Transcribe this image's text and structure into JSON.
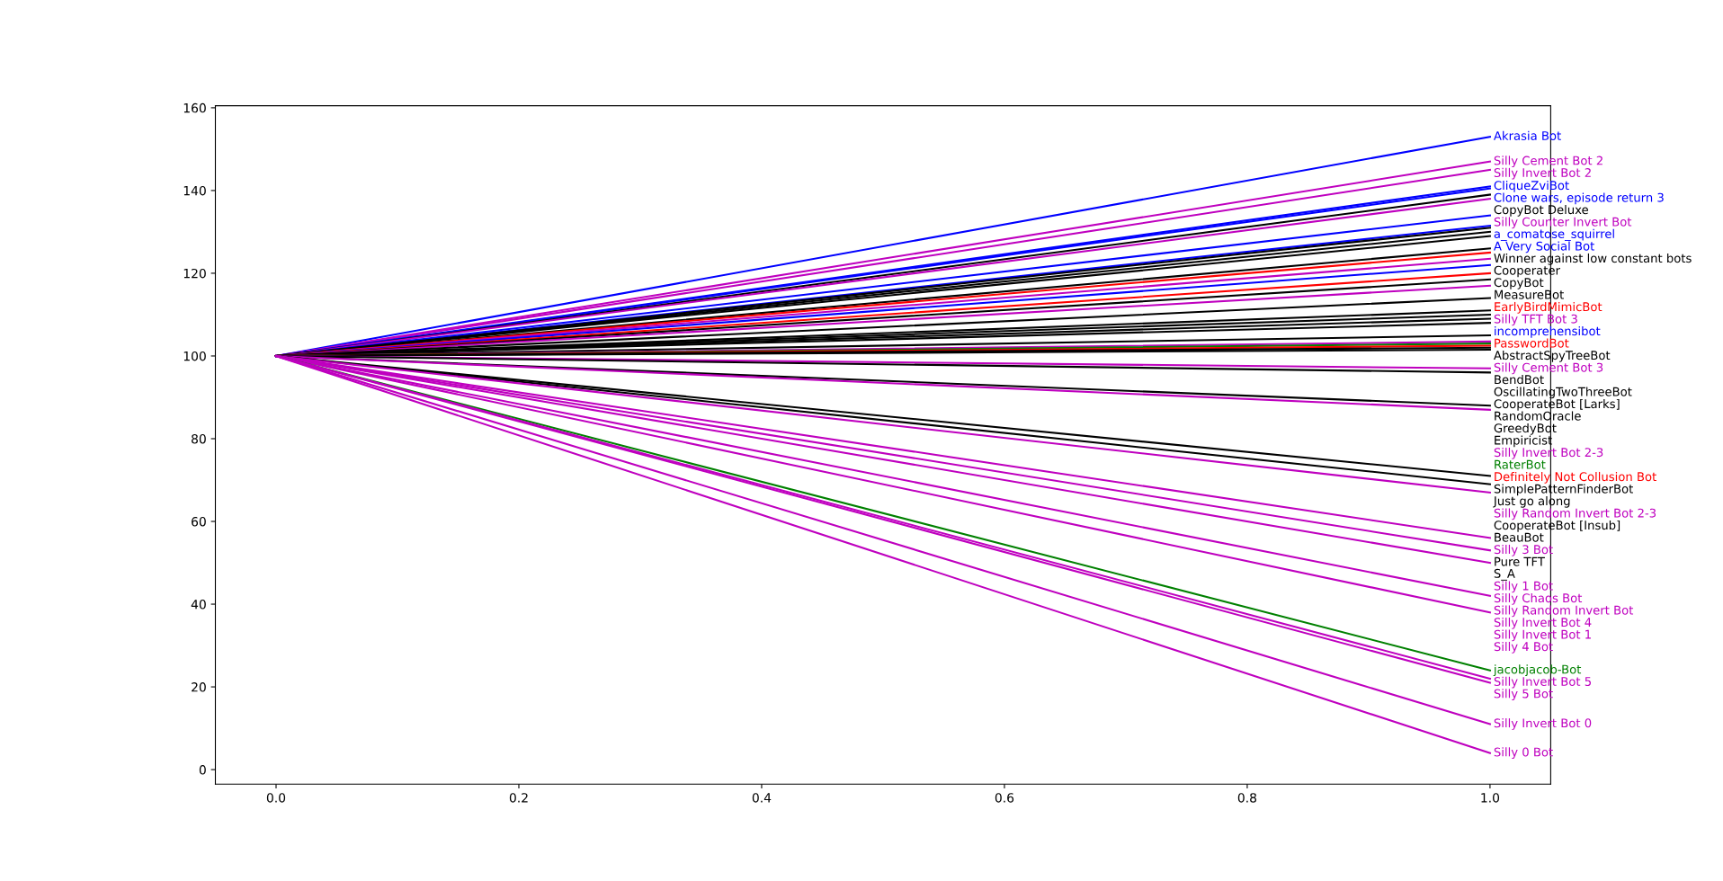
{
  "chart_data": {
    "type": "line",
    "x": [
      0,
      1
    ],
    "xlim": [
      -0.05,
      1.05
    ],
    "xticks": [
      {
        "value": 0,
        "label": "0.0"
      },
      0.2,
      0.4,
      0.6,
      0.8,
      {
        "value": 1,
        "label": "1.0"
      }
    ],
    "ylim": [
      -3.5,
      160.5
    ],
    "yticks": [
      0,
      20,
      40,
      60,
      80,
      100,
      120,
      140,
      160
    ],
    "grid": false,
    "legend": false,
    "marker": "none",
    "line_style": "solid",
    "series": [
      {
        "name": "Akrasia Bot",
        "color": "#0000ff",
        "values": [
          100,
          153
        ]
      },
      {
        "name": "Silly Cement Bot 2",
        "color": "#bf00bf",
        "values": [
          100,
          147
        ]
      },
      {
        "name": "Silly Invert Bot 2",
        "color": "#bf00bf",
        "values": [
          100,
          145
        ]
      },
      {
        "name": "CliqueZviBot",
        "color": "#0000ff",
        "values": [
          100,
          141
        ]
      },
      {
        "name": "Clone wars, episode return 3",
        "color": "#0000ff",
        "values": [
          100,
          140.5
        ]
      },
      {
        "name": "CopyBot Deluxe",
        "color": "#000000",
        "values": [
          100,
          139
        ]
      },
      {
        "name": "Silly Counter Invert Bot",
        "color": "#bf00bf",
        "values": [
          100,
          138
        ]
      },
      {
        "name": "a_comatose_squirrel",
        "color": "#0000ff",
        "values": [
          100,
          134
        ]
      },
      {
        "name": "A Very Social Bot",
        "color": "#0000ff",
        "values": [
          100,
          131.5
        ]
      },
      {
        "name": "Winner against low constant bots",
        "color": "#000000",
        "values": [
          100,
          131
        ]
      },
      {
        "name": "Cooperater",
        "color": "#000000",
        "values": [
          100,
          130
        ]
      },
      {
        "name": "CopyBot",
        "color": "#000000",
        "values": [
          100,
          129
        ]
      },
      {
        "name": "MeasureBot",
        "color": "#000000",
        "values": [
          100,
          126
        ]
      },
      {
        "name": "EarlyBirdMimicBot",
        "color": "#ff0000",
        "values": [
          100,
          125
        ]
      },
      {
        "name": "Silly TFT Bot 3",
        "color": "#bf00bf",
        "values": [
          100,
          123.5
        ]
      },
      {
        "name": "incomprehensibot",
        "color": "#0000ff",
        "values": [
          100,
          122
        ]
      },
      {
        "name": "PasswordBot",
        "color": "#ff0000",
        "values": [
          100,
          120
        ]
      },
      {
        "name": "AbstractSpyTreeBot",
        "color": "#000000",
        "values": [
          100,
          118.5
        ]
      },
      {
        "name": "Silly Cement Bot 3",
        "color": "#bf00bf",
        "values": [
          100,
          117
        ]
      },
      {
        "name": "BendBot",
        "color": "#000000",
        "values": [
          100,
          114
        ]
      },
      {
        "name": "OscillatingTwoThreeBot",
        "color": "#000000",
        "values": [
          100,
          111
        ]
      },
      {
        "name": "CooperateBot [Larks]",
        "color": "#000000",
        "values": [
          100,
          110
        ]
      },
      {
        "name": "RandomOracle",
        "color": "#000000",
        "values": [
          100,
          109
        ]
      },
      {
        "name": "GreedyBot",
        "color": "#000000",
        "values": [
          100,
          108
        ]
      },
      {
        "name": "Empiricist",
        "color": "#000000",
        "values": [
          100,
          105
        ]
      },
      {
        "name": "Silly Invert Bot 2-3",
        "color": "#bf00bf",
        "values": [
          100,
          103.5
        ]
      },
      {
        "name": "RaterBot",
        "color": "#008000",
        "values": [
          100,
          103
        ]
      },
      {
        "name": "Definitely Not Collusion Bot",
        "color": "#ff0000",
        "values": [
          100,
          102.5
        ]
      },
      {
        "name": "SimplePatternFinderBot",
        "color": "#000000",
        "values": [
          100,
          102
        ]
      },
      {
        "name": "Just go along",
        "color": "#000000",
        "values": [
          100,
          101.5
        ]
      },
      {
        "name": "Silly Random Invert Bot 2-3",
        "color": "#bf00bf",
        "values": [
          100,
          97
        ]
      },
      {
        "name": "CooperateBot [Insub]",
        "color": "#000000",
        "values": [
          100,
          96
        ]
      },
      {
        "name": "BeauBot",
        "color": "#000000",
        "values": [
          100,
          88
        ]
      },
      {
        "name": "Silly 3 Bot",
        "color": "#bf00bf",
        "values": [
          100,
          87
        ]
      },
      {
        "name": "Pure TFT",
        "color": "#000000",
        "values": [
          100,
          71
        ]
      },
      {
        "name": "S_A",
        "color": "#000000",
        "values": [
          100,
          69
        ]
      },
      {
        "name": "Silly 1 Bot",
        "color": "#bf00bf",
        "values": [
          100,
          67
        ]
      },
      {
        "name": "Silly Chaos Bot",
        "color": "#bf00bf",
        "values": [
          100,
          56
        ]
      },
      {
        "name": "Silly Random Invert Bot",
        "color": "#bf00bf",
        "values": [
          100,
          53
        ]
      },
      {
        "name": "Silly Invert Bot 4",
        "color": "#bf00bf",
        "values": [
          100,
          50
        ]
      },
      {
        "name": "Silly Invert Bot 1",
        "color": "#bf00bf",
        "values": [
          100,
          42
        ]
      },
      {
        "name": "Silly 4 Bot",
        "color": "#bf00bf",
        "values": [
          100,
          38
        ]
      },
      {
        "name": "jacobjacob-Bot",
        "color": "#008000",
        "values": [
          100,
          24
        ]
      },
      {
        "name": "Silly Invert Bot 5",
        "color": "#bf00bf",
        "values": [
          100,
          22
        ]
      },
      {
        "name": "Silly 5 Bot",
        "color": "#bf00bf",
        "values": [
          100,
          21
        ]
      },
      {
        "name": "Silly Invert Bot 0",
        "color": "#bf00bf",
        "values": [
          100,
          11
        ]
      },
      {
        "name": "Silly 0 Bot",
        "color": "#bf00bf",
        "values": [
          100,
          4
        ]
      }
    ]
  }
}
